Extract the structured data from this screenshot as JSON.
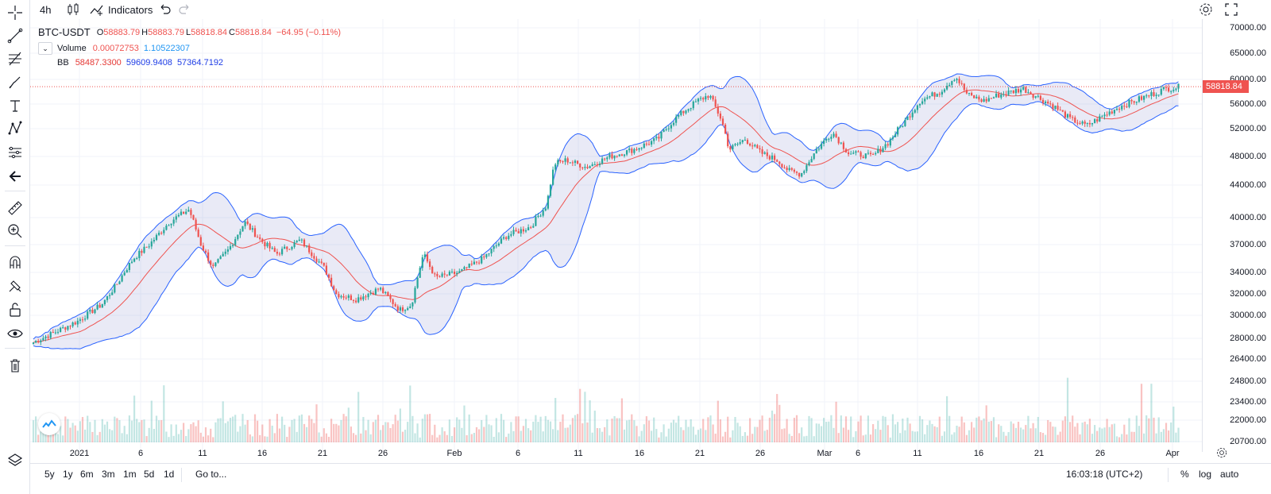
{
  "toolbar": {
    "interval": "4h",
    "indicators_label": "Indicators"
  },
  "legend": {
    "symbol": "BTC-USDT",
    "ohlc": [
      {
        "k": "O",
        "v": "58883.79"
      },
      {
        "k": "H",
        "v": "58883.79"
      },
      {
        "k": "L",
        "v": "58818.84"
      },
      {
        "k": "C",
        "v": "58818.84"
      }
    ],
    "change": "−64.95 (−0.11%)",
    "volume_label": "Volume",
    "volume_v1": "0.00072753",
    "volume_v2": "1.10522307",
    "bb_label": "BB",
    "bb_v1": "58487.3300",
    "bb_v2": "59609.9408",
    "bb_v3": "57364.7192"
  },
  "price_axis": {
    "labels": [
      "70000.00",
      "65000.00",
      "60000.00",
      "56000.00",
      "52000.00",
      "48000.00",
      "44000.00",
      "40000.00",
      "37000.00",
      "34000.00",
      "32000.00",
      "30000.00",
      "28000.00",
      "26400.00",
      "24800.00",
      "23400.00",
      "22000.00",
      "20700.00"
    ],
    "current_price": "58818.84"
  },
  "time_axis": {
    "labels": [
      "2021",
      "6",
      "11",
      "16",
      "21",
      "26",
      "Feb",
      "6",
      "11",
      "16",
      "21",
      "26",
      "Mar",
      "6",
      "11",
      "16",
      "21",
      "26",
      "Apr"
    ]
  },
  "bottom_bar": {
    "ranges": [
      "5y",
      "1y",
      "6m",
      "3m",
      "1m",
      "5d",
      "1d"
    ],
    "goto": "Go to...",
    "clock": "16:03:18 (UTC+2)",
    "percent": "%",
    "log": "log",
    "auto": "auto"
  },
  "chart_data": {
    "type": "candlestick",
    "x": [
      "2021-01-01",
      "2021-01-06",
      "2021-01-11",
      "2021-01-16",
      "2021-01-21",
      "2021-01-26",
      "2021-02-01",
      "2021-02-06",
      "2021-02-11",
      "2021-02-16",
      "2021-02-21",
      "2021-02-26",
      "2021-03-01",
      "2021-03-06",
      "2021-03-11",
      "2021-03-16",
      "2021-03-21",
      "2021-03-26",
      "2021-04-01"
    ],
    "close": [
      29000,
      36000,
      38500,
      36500,
      33000,
      31500,
      34000,
      39000,
      47500,
      48500,
      56000,
      46500,
      48000,
      49000,
      56000,
      57500,
      57000,
      52500,
      58818.84
    ],
    "bb_upper_last": 59609.9408,
    "bb_mid_last": 58487.33,
    "bb_lower_last": 57364.7192,
    "series": [
      {
        "name": "Volume"
      },
      {
        "name": "BB"
      }
    ],
    "colors": {
      "up": "#26a69a",
      "down": "#ef5350",
      "band": "#2962ff",
      "basis": "#ef5350"
    }
  }
}
